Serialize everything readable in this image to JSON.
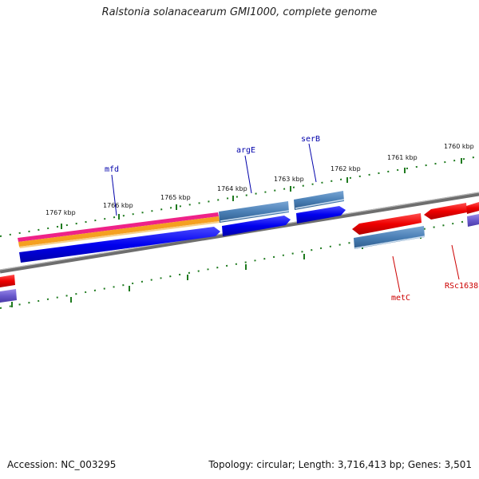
{
  "title": "Ralstonia solanacearum GMI1000, complete genome",
  "footer": {
    "accession": "Accession: NC_003295",
    "stats": "Topology: circular; Length: 3,716,413 bp; Genes: 3,501"
  },
  "ruler": {
    "ticks": [
      "1767 kbp",
      "1766 kbp",
      "1765 kbp",
      "1764 kbp",
      "1763 kbp",
      "1762 kbp",
      "1761 kbp",
      "1760 kbp"
    ]
  },
  "genes": {
    "forward": [
      "mfd",
      "argE",
      "serB"
    ],
    "reverse": [
      "metC",
      "RSc1638"
    ]
  },
  "colors": {
    "backbone": "#808080",
    "ruler_ticks": "#1e7a1e",
    "forward_gene": "#0000ee",
    "forward_label": "#0000aa",
    "reverse_gene": "#ee0000",
    "reverse_label": "#cc0000",
    "steelblue_feature": "#4a7fb5",
    "magenta_feature": "#ee2288",
    "orange_feature": "#f5a020",
    "purple_feature": "#6a5acd"
  }
}
